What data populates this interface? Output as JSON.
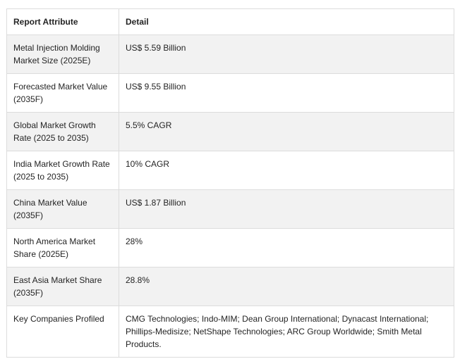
{
  "table": {
    "headers": [
      "Report Attribute",
      "Detail"
    ],
    "rows": [
      {
        "attribute": "Metal Injection Molding Market Size (2025E)",
        "detail": "US$ 5.59 Billion"
      },
      {
        "attribute": "Forecasted Market Value (2035F)",
        "detail": "US$ 9.55 Billion"
      },
      {
        "attribute": "Global Market Growth Rate (2025 to 2035)",
        "detail": "5.5% CAGR"
      },
      {
        "attribute": "India Market Growth Rate (2025 to 2035)",
        "detail": "10% CAGR"
      },
      {
        "attribute": "China Market Value (2035F)",
        "detail": "US$ 1.87 Billion"
      },
      {
        "attribute": "North America Market Share (2025E)",
        "detail": "28%"
      },
      {
        "attribute": "East Asia Market Share (2035F)",
        "detail": "28.8%"
      },
      {
        "attribute": "Key Companies Profiled",
        "detail": "CMG Technologies; Indo-MIM; Dean Group International; Dynacast International; Phillips-Medisize; NetShape Technologies; ARC Group Worldwide; Smith Metal Products."
      }
    ]
  }
}
